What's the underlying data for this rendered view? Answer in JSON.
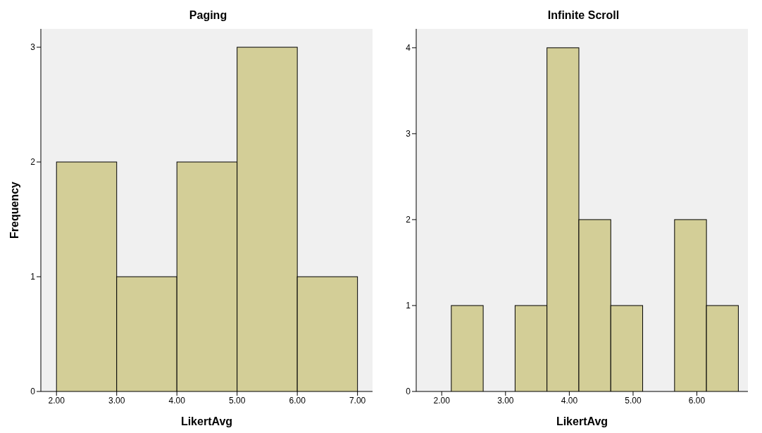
{
  "chart_data": [
    {
      "type": "histogram",
      "title": "Paging",
      "xlabel": "LikertAvg",
      "ylabel": "Frequency",
      "bins": [
        2,
        3,
        4,
        5,
        6,
        7
      ],
      "values": [
        2,
        1,
        2,
        3,
        1
      ],
      "color": "#d3ce97",
      "xlim": [
        1.74,
        7.25
      ],
      "xticks": [
        {
          "value": 2,
          "label": "2.00"
        },
        {
          "value": 3,
          "label": "3.00"
        },
        {
          "value": 4,
          "label": "4.00"
        },
        {
          "value": 5,
          "label": "5.00"
        },
        {
          "value": 6,
          "label": "6.00"
        },
        {
          "value": 7,
          "label": "7.00"
        }
      ],
      "ylim": [
        0,
        3.16
      ],
      "yticks": [
        0,
        1,
        2,
        3
      ],
      "grid": false
    },
    {
      "type": "histogram",
      "title": "Infinite Scroll",
      "xlabel": "LikertAvg",
      "bins": [
        2.15,
        2.65,
        3.15,
        3.65,
        4.15,
        4.65,
        5.15,
        5.65,
        6.15,
        6.65
      ],
      "values": [
        1,
        0,
        1,
        4,
        2,
        1,
        0,
        2,
        1
      ],
      "color": "#d3ce97",
      "xlim": [
        1.6,
        6.8
      ],
      "xticks": [
        {
          "value": 2,
          "label": "2.00"
        },
        {
          "value": 3,
          "label": "3.00"
        },
        {
          "value": 4,
          "label": "4.00"
        },
        {
          "value": 5,
          "label": "5.00"
        },
        {
          "value": 6,
          "label": "6.00"
        }
      ],
      "ylim": [
        0,
        4.22
      ],
      "yticks": [
        0,
        1,
        2,
        3,
        4
      ],
      "grid": false
    }
  ]
}
